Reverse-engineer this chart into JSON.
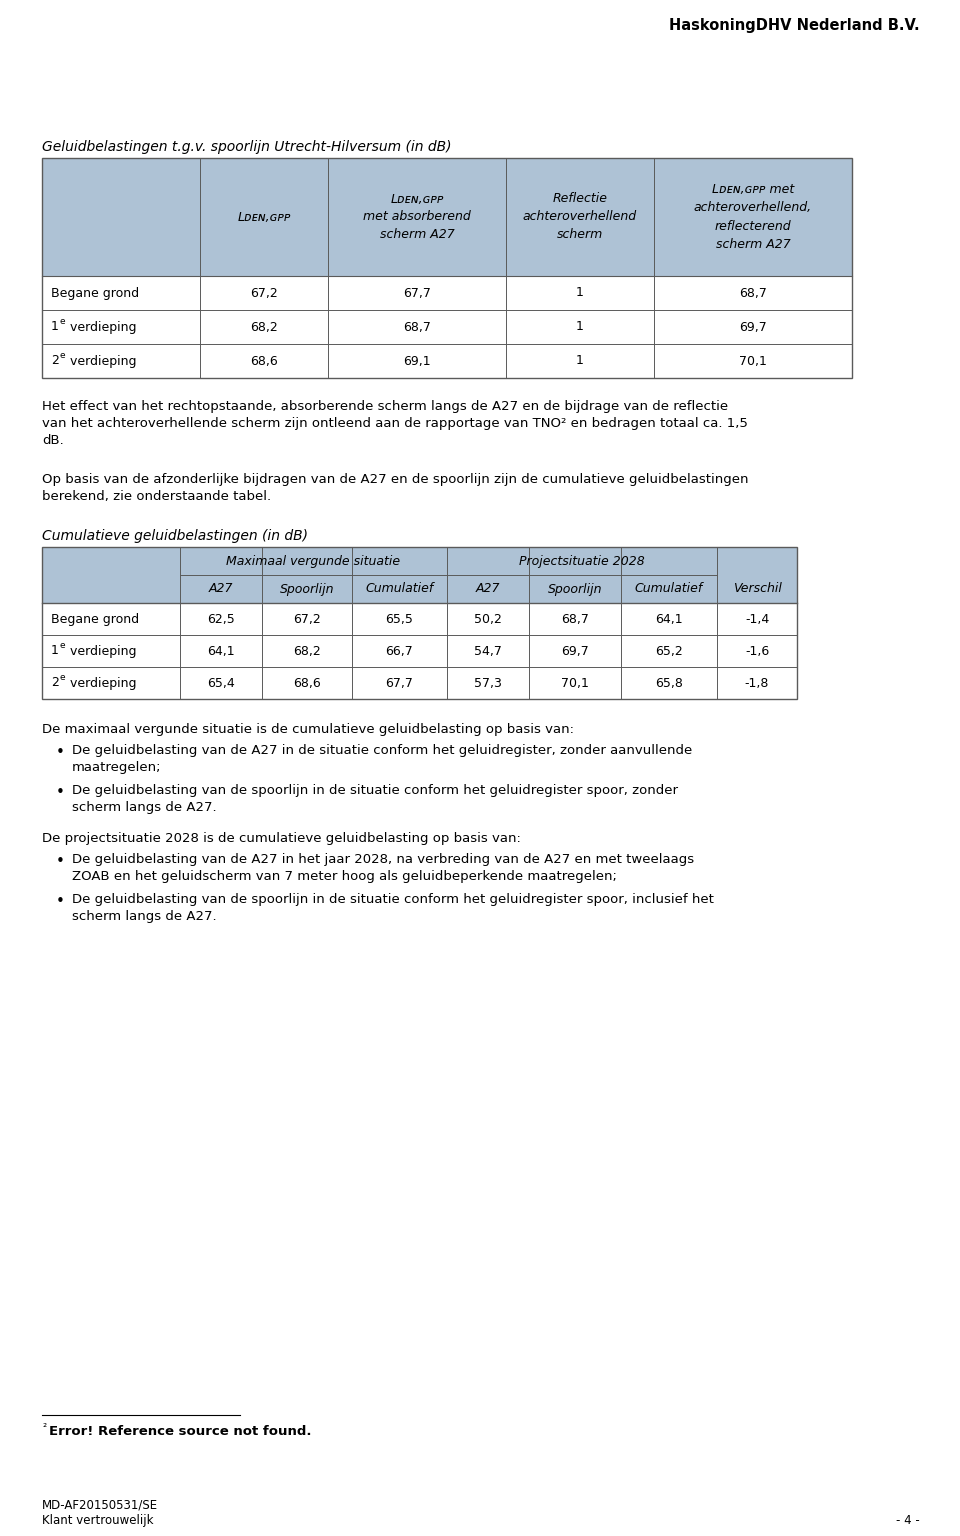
{
  "header_company": "HaskoningDHV Nederland B.V.",
  "page_number": "- 4 -",
  "table1_title": "Geluidbelastingen t.g.v. spoorlijn Utrecht-Hilversum (in dB)",
  "table1_rows": [
    [
      "Begane grond",
      "67,2",
      "67,7",
      "1",
      "68,7"
    ],
    [
      "1e verdieping",
      "68,2",
      "68,7",
      "1",
      "69,7"
    ],
    [
      "2e verdieping",
      "68,6",
      "69,1",
      "1",
      "70,1"
    ]
  ],
  "para1_lines": [
    "Het effect van het rechtopstaande, absorberende scherm langs de A27 en de bijdrage van de reflectie",
    "van het achteroverhellende scherm zijn ontleend aan de rapportage van TNO² en bedragen totaal ca. 1,5",
    "dB."
  ],
  "para2_lines": [
    "Op basis van de afzonderlijke bijdragen van de A27 en de spoorlijn zijn de cumulatieve geluidbelastingen",
    "berekend, zie onderstaande tabel."
  ],
  "table2_title": "Cumulatieve geluidbelastingen (in dB)",
  "table2_rows": [
    [
      "Begane grond",
      "62,5",
      "67,2",
      "65,5",
      "50,2",
      "68,7",
      "64,1",
      "-1,4"
    ],
    [
      "1e verdieping",
      "64,1",
      "68,2",
      "66,7",
      "54,7",
      "69,7",
      "65,2",
      "-1,6"
    ],
    [
      "2e verdieping",
      "65,4",
      "68,6",
      "67,7",
      "57,3",
      "70,1",
      "65,8",
      "-1,8"
    ]
  ],
  "para3": "De maximaal vergunde situatie is de cumulatieve geluidbelasting op basis van:",
  "bullets1_lines": [
    [
      "De geluidbelasting van de A27 in de situatie conform het geluidregister, zonder aanvullende",
      "maatregelen;"
    ],
    [
      "De geluidbelasting van de spoorlijn in de situatie conform het geluidregister spoor, zonder",
      "scherm langs de A27."
    ]
  ],
  "para4": "De projectsituatie 2028 is de cumulatieve geluidbelasting op basis van:",
  "bullets2_lines": [
    [
      "De geluidbelasting van de A27 in het jaar 2028, na verbreding van de A27 en met tweelaags",
      "ZOAB en het geluidscherm van 7 meter hoog als geluidbeperkende maatregelen;"
    ],
    [
      "De geluidbelasting van de spoorlijn in de situatie conform het geluidregister spoor, inclusief het",
      "scherm langs de A27."
    ]
  ],
  "header_color": "#aec2d5",
  "border_color": "#5a5a5a",
  "bg_color": "#ffffff",
  "text_color": "#000000",
  "t1_header_h1_label": "Lᴅᴇɴ,ɢᴘᴘ",
  "t1_header_h2_label": "Lᴅᴇɴ,ɢᴘᴘ\nmet absorberend\nscherm A27",
  "t1_header_h3_label": "Reflectie\nachteroverhellend\nscherm",
  "t1_header_h4_label": "Lᴅᴇɴ,ɢᴘᴘ met\nachteroverhellend,\nreflecterend\nscherm A27"
}
